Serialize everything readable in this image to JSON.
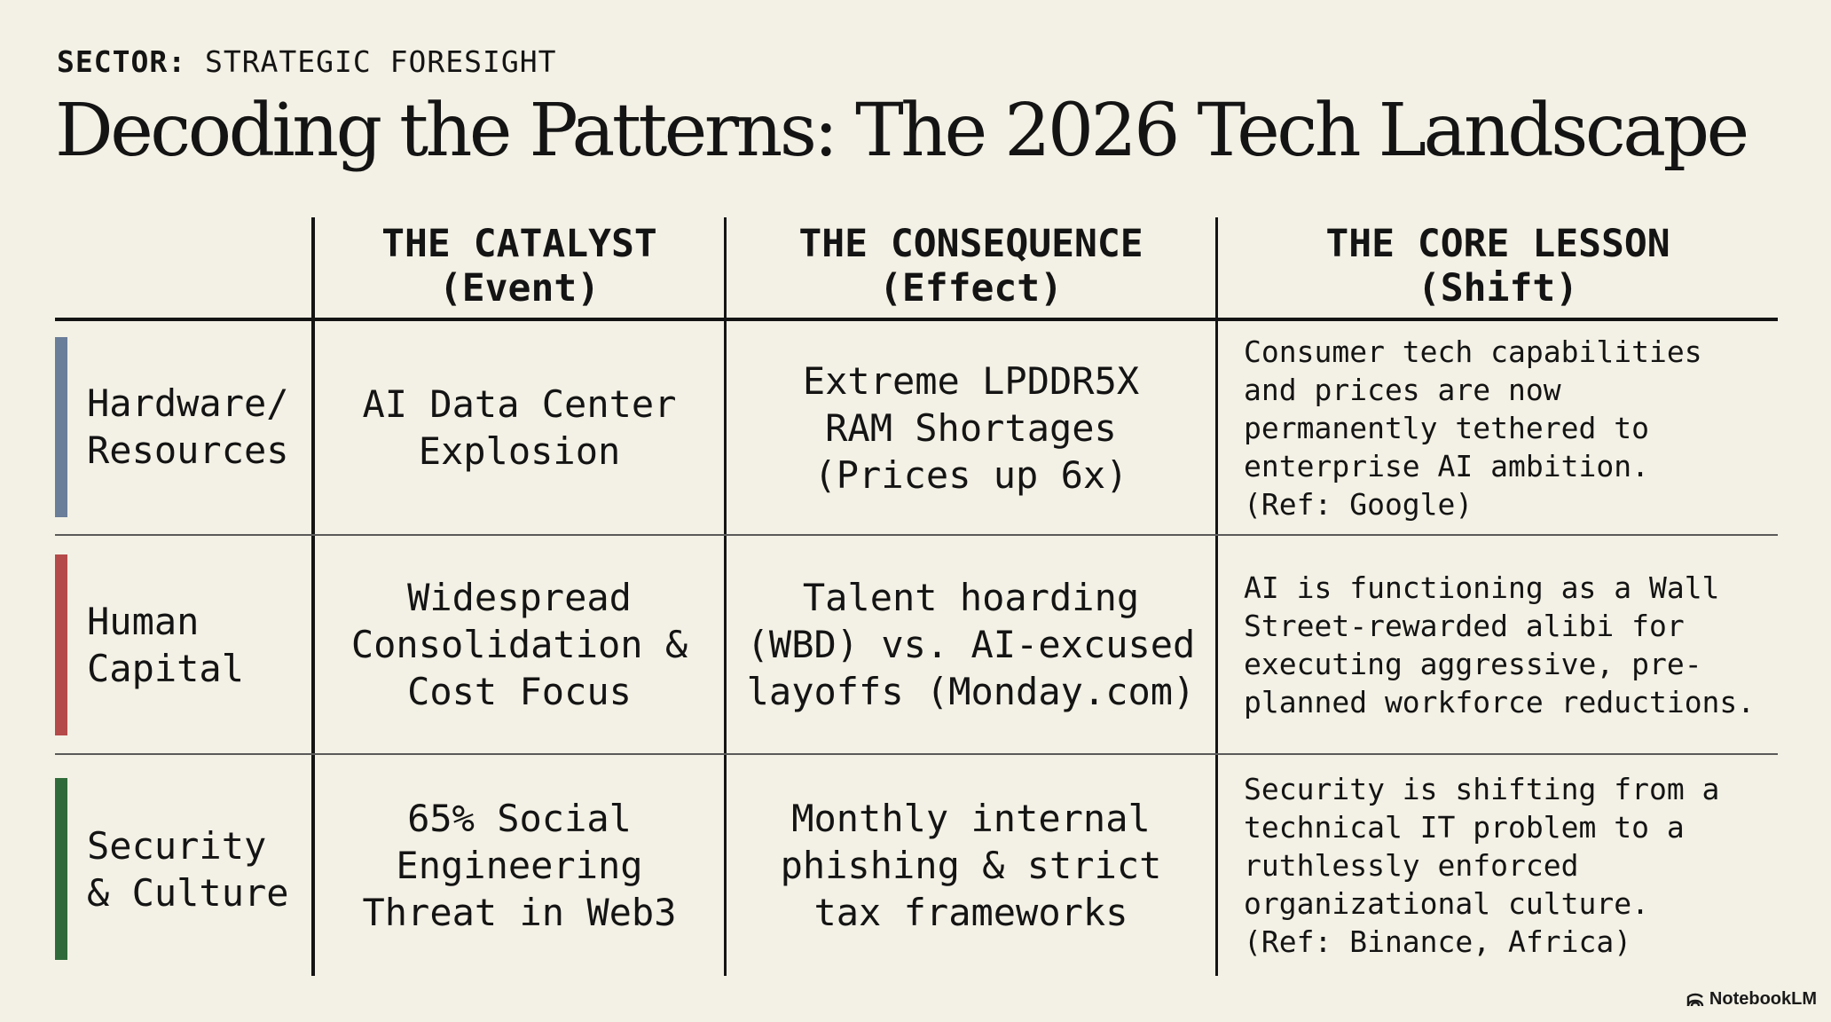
{
  "header": {
    "sector_label": "SECTOR:",
    "sector_value": "STRATEGIC FORESIGHT",
    "title": "Decoding the Patterns: The 2026 Tech Landscape"
  },
  "columns": [
    {
      "title": "THE CATALYST",
      "subtitle": "(Event)"
    },
    {
      "title": "THE CONSEQUENCE",
      "subtitle": "(Effect)"
    },
    {
      "title": "THE CORE LESSON",
      "subtitle": "(Shift)"
    }
  ],
  "rows": [
    {
      "label": [
        "Hardware/",
        "Resources"
      ],
      "accent_color": "#6a7d99",
      "catalyst": [
        "AI Data Center",
        "Explosion"
      ],
      "consequence": [
        "Extreme LPDDR5X",
        "RAM Shortages",
        "(Prices up 6x)"
      ],
      "lesson": [
        "Consumer tech capabilities",
        "and prices are now",
        "permanently tethered to",
        "enterprise AI ambition.",
        "(Ref: Google)"
      ]
    },
    {
      "label": [
        "Human",
        "Capital"
      ],
      "accent_color": "#b54a4a",
      "catalyst": [
        "Widespread",
        "Consolidation &",
        "Cost Focus"
      ],
      "consequence": [
        "Talent hoarding",
        "(WBD) vs. AI-excused",
        "layoffs (Monday.com)"
      ],
      "lesson": [
        "AI is functioning as a Wall",
        "Street-rewarded alibi for",
        "executing aggressive, pre-",
        "planned workforce reductions."
      ]
    },
    {
      "label": [
        "Security",
        "& Culture"
      ],
      "accent_color": "#2f6b3a",
      "catalyst": [
        "65% Social",
        "Engineering",
        "Threat in Web3"
      ],
      "consequence": [
        "Monthly internal",
        "phishing & strict",
        "tax frameworks"
      ],
      "lesson": [
        "Security is shifting from a",
        "technical IT problem to a",
        "ruthlessly enforced",
        "organizational culture.",
        "(Ref: Binance, Africa)"
      ]
    }
  ],
  "brand": {
    "name": "NotebookLM",
    "icon": "notebooklm-logo-icon"
  }
}
